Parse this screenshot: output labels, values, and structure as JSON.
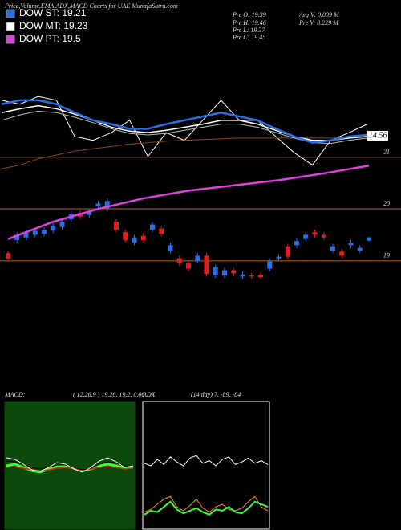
{
  "header": {
    "title": "Price,Volume,EMA,ADX,MACD Charts for UAE MunafaSutra.com"
  },
  "legend": [
    {
      "label": "DOW ST: 19.21",
      "color": "#2a6fe8"
    },
    {
      "label": "DOW MT: 19.23",
      "color": "#ffffff"
    },
    {
      "label": "DOW PT: 19.5",
      "color": "#e040e0"
    }
  ],
  "stats": [
    "Pre  O: 19.39",
    "Pre  H: 19.46",
    "Pre  L: 19.37",
    "Pre  C: 19.45",
    "Avg V: 0.009 M",
    "Pre V: 0.229 M"
  ],
  "chart_data": [
    {
      "type": "line",
      "ylim": [
        20.8,
        22.0
      ],
      "yticks": [
        21
      ],
      "grid": true,
      "grid_color": "#8b4513",
      "annotation": "14.56",
      "series": [
        {
          "color": "#ffffff",
          "width": 1,
          "values": [
            21.74,
            21.69,
            21.79,
            21.74,
            21.27,
            21.22,
            21.32,
            21.48,
            21.01,
            21.32,
            21.22,
            21.48,
            21.74,
            21.48,
            21.48,
            21.27,
            21.06,
            20.9,
            21.22,
            21.32,
            21.43
          ]
        },
        {
          "color": "#8b4513",
          "width": 1,
          "values": [
            20.85,
            20.9,
            20.98,
            21.03,
            21.08,
            21.11,
            21.14,
            21.17,
            21.19,
            21.21,
            21.22,
            21.23,
            21.24,
            21.25,
            21.25,
            21.25,
            21.25,
            21.25,
            21.25,
            21.26,
            21.27
          ]
        },
        {
          "color": "#bbbbbb",
          "width": 1,
          "values": [
            21.48,
            21.55,
            21.6,
            21.58,
            21.52,
            21.45,
            21.37,
            21.31,
            21.29,
            21.31,
            21.35,
            21.39,
            21.43,
            21.43,
            21.39,
            21.32,
            21.25,
            21.19,
            21.18,
            21.22,
            21.25
          ]
        },
        {
          "color": "#ffffff",
          "width": 1.5,
          "values": [
            21.58,
            21.63,
            21.67,
            21.63,
            21.56,
            21.48,
            21.39,
            21.34,
            21.32,
            21.35,
            21.39,
            21.43,
            21.48,
            21.48,
            21.43,
            21.35,
            21.27,
            21.22,
            21.22,
            21.25,
            21.27
          ]
        },
        {
          "color": "#2a6fe8",
          "width": 2.5,
          "values": [
            21.69,
            21.74,
            21.74,
            21.69,
            21.58,
            21.48,
            21.43,
            21.37,
            21.37,
            21.43,
            21.48,
            21.53,
            21.58,
            21.53,
            21.48,
            21.37,
            21.27,
            21.19,
            21.22,
            21.27,
            21.29
          ]
        }
      ]
    },
    {
      "type": "candlestick",
      "ylim": [
        18.15,
        21.08
      ],
      "yticks": [
        19,
        20
      ],
      "grid": true,
      "grid_color": "#b5651d",
      "up_color": "#2a6fe8",
      "down_color": "#e02020",
      "open": [
        19.15,
        19.4,
        19.45,
        19.5,
        19.52,
        19.58,
        19.65,
        19.8,
        19.92,
        19.88,
        20.05,
        20.0,
        19.75,
        19.55,
        19.35,
        19.48,
        19.6,
        19.62,
        19.2,
        19.05,
        18.95,
        19.0,
        19.1,
        18.72,
        18.72,
        18.82,
        18.7,
        18.72,
        18.73,
        18.85,
        19.05,
        19.28,
        19.3,
        19.42,
        19.55,
        19.5,
        19.2,
        19.18,
        19.3,
        19.2,
        19.39
      ],
      "high": [
        19.2,
        19.55,
        19.6,
        19.63,
        19.65,
        19.73,
        19.8,
        19.95,
        19.97,
        20.0,
        20.15,
        20.2,
        19.8,
        19.6,
        19.5,
        19.53,
        19.75,
        19.67,
        19.35,
        19.1,
        19.0,
        19.15,
        19.15,
        18.93,
        18.87,
        18.87,
        18.79,
        18.77,
        18.78,
        19.05,
        19.13,
        19.33,
        19.43,
        19.55,
        19.6,
        19.55,
        19.33,
        19.23,
        19.4,
        19.3,
        19.46
      ],
      "low": [
        19.0,
        19.35,
        19.4,
        19.45,
        19.47,
        19.53,
        19.6,
        19.75,
        19.8,
        19.83,
        20.0,
        19.95,
        19.55,
        19.35,
        19.3,
        19.35,
        19.55,
        19.47,
        19.15,
        18.9,
        18.8,
        18.95,
        18.7,
        18.67,
        18.67,
        18.71,
        18.65,
        18.65,
        18.64,
        18.8,
        19.0,
        19.03,
        19.25,
        19.37,
        19.45,
        19.4,
        19.15,
        19.05,
        19.25,
        19.15,
        19.37
      ],
      "close": [
        19.05,
        19.5,
        19.55,
        19.58,
        19.6,
        19.68,
        19.75,
        19.9,
        19.85,
        19.95,
        20.1,
        20.15,
        19.6,
        19.4,
        19.45,
        19.4,
        19.7,
        19.52,
        19.3,
        18.95,
        18.85,
        19.1,
        18.75,
        18.88,
        18.82,
        18.76,
        18.74,
        18.7,
        18.69,
        19.0,
        19.08,
        19.08,
        19.38,
        19.5,
        19.5,
        19.45,
        19.28,
        19.1,
        19.35,
        19.25,
        19.45
      ],
      "series": [
        {
          "color": "#e040e0",
          "width": 2.5,
          "x": [
            0,
            5,
            10,
            15,
            20,
            25,
            30,
            35,
            40
          ],
          "values": [
            19.42,
            19.75,
            20.0,
            20.2,
            20.35,
            20.45,
            20.55,
            20.68,
            20.83
          ]
        }
      ]
    },
    {
      "type": "line",
      "title": "MACD:",
      "subtitle": "( 12,26,9 ) 19.26, 19.2, 0.06",
      "background": "#0b4a0b",
      "border": "#0b4a0b",
      "ylim": [
        18.4,
        20.0
      ],
      "series": [
        {
          "color": "#33ff33",
          "width": 3,
          "values": [
            19.2,
            19.22,
            19.18,
            19.14,
            19.12,
            19.16,
            19.2,
            19.2,
            19.17,
            19.14,
            19.16,
            19.2,
            19.22,
            19.2,
            19.17,
            19.18
          ]
        },
        {
          "color": "#e02020",
          "width": 1.5,
          "values": [
            19.18,
            19.19,
            19.17,
            19.15,
            19.14,
            19.15,
            19.17,
            19.18,
            19.16,
            19.15,
            19.16,
            19.18,
            19.19,
            19.18,
            19.16,
            19.17
          ]
        },
        {
          "color": "#000000",
          "width": 1,
          "values": [
            19.26,
            19.25,
            19.22,
            19.18,
            19.16,
            19.18,
            19.21,
            19.21,
            19.18,
            19.15,
            19.17,
            19.22,
            19.25,
            19.24,
            19.2,
            19.2
          ]
        },
        {
          "color": "#ffffff",
          "width": 1,
          "values": [
            19.3,
            19.28,
            19.22,
            19.15,
            19.13,
            19.18,
            19.24,
            19.22,
            19.16,
            19.12,
            19.18,
            19.26,
            19.3,
            19.25,
            19.18,
            19.2
          ]
        }
      ]
    },
    {
      "type": "line",
      "title": "ADX",
      "subtitle": "(14 day) 7, -89, -84",
      "background": "#000000",
      "border": "#ffffff",
      "ylim": [
        0,
        100
      ],
      "series": [
        {
          "color": "#ffffff",
          "width": 1,
          "values": [
            52,
            50,
            55,
            51,
            57,
            53,
            50,
            56,
            58,
            52,
            54,
            50,
            55,
            57,
            51,
            53,
            56,
            52,
            54,
            51
          ]
        },
        {
          "color": "#ff8c00",
          "width": 1,
          "values": [
            14,
            16,
            20,
            24,
            26,
            18,
            15,
            19,
            24,
            17,
            14,
            18,
            20,
            16,
            15,
            17,
            22,
            26,
            18,
            15
          ]
        },
        {
          "color": "#33ff33",
          "width": 2,
          "values": [
            12,
            15,
            14,
            18,
            22,
            16,
            13,
            15,
            17,
            14,
            12,
            16,
            15,
            18,
            14,
            13,
            17,
            22,
            20,
            18
          ]
        }
      ]
    }
  ]
}
